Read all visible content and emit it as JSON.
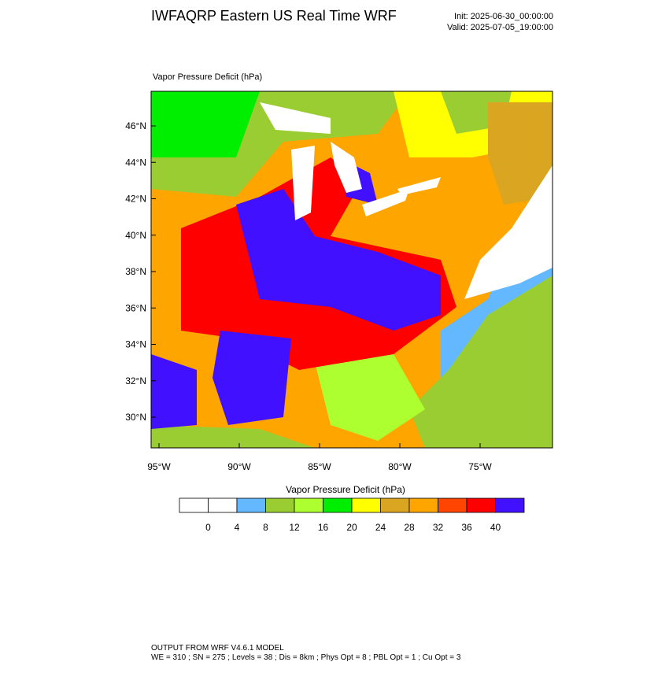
{
  "header": {
    "title": "IWFAQRP Eastern US Real Time WRF",
    "init": "Init: 2025-06-30_00:00:00",
    "valid": "Valid: 2025-07-05_19:00:00"
  },
  "map": {
    "label": "Vapor Pressure Deficit   (hPa)",
    "lat_ticks": [
      "46°N",
      "44°N",
      "42°N",
      "40°N",
      "38°N",
      "36°N",
      "34°N",
      "32°N",
      "30°N"
    ],
    "lon_ticks": [
      "95°W",
      "90°W",
      "85°W",
      "80°W",
      "75°W"
    ]
  },
  "colorbar": {
    "title": "Vapor Pressure Deficit  (hPa)",
    "ticks": [
      "0",
      "4",
      "8",
      "12",
      "16",
      "20",
      "24",
      "28",
      "32",
      "36",
      "40"
    ],
    "colors": [
      "#ffffff",
      "#ffffff",
      "#63b8ff",
      "#9acd32",
      "#adff2f",
      "#00ee00",
      "#ffff00",
      "#daa520",
      "#ffa500",
      "#ff4500",
      "#ff0000",
      "#4010ff"
    ]
  },
  "footer": {
    "line1": "OUTPUT FROM WRF V4.6.1 MODEL",
    "line2": "WE = 310 ; SN = 275 ; Levels = 38 ; Dis = 8km ; Phys Opt = 8 ; PBL Opt = 1 ; Cu Opt = 3"
  }
}
